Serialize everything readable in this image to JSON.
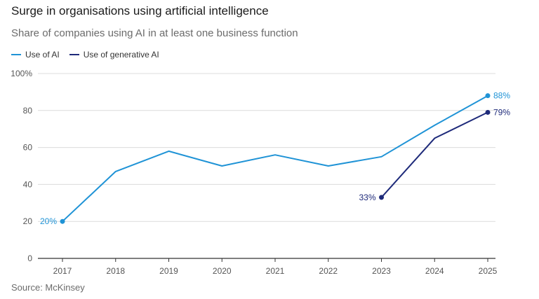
{
  "title": "Surge in organisations using artificial intelligence",
  "subtitle": "Share of companies using AI in at least one business function",
  "source": "Source: McKinsey",
  "chart_data": {
    "type": "line",
    "title": "Surge in organisations using artificial intelligence",
    "subtitle": "Share of companies using AI in at least one business function",
    "x": [
      2017,
      2018,
      2019,
      2020,
      2021,
      2022,
      2023,
      2024,
      2025
    ],
    "ylim": [
      0,
      100
    ],
    "yticks": [
      0,
      20,
      40,
      60,
      80,
      100
    ],
    "ytick_labels": [
      "0",
      "20",
      "40",
      "60",
      "80",
      "100%"
    ],
    "grid": true,
    "legend_position": "top-left",
    "series": [
      {
        "name": "Use of AI",
        "color": "#1f93d6",
        "values": [
          20,
          47,
          58,
          50,
          56,
          50,
          55,
          72,
          88
        ],
        "labels": [
          {
            "index": 0,
            "text": "20%",
            "side": "left"
          },
          {
            "index": 8,
            "text": "88%",
            "side": "right"
          }
        ]
      },
      {
        "name": "Use of generative AI",
        "color": "#1e2a7a",
        "values": [
          null,
          null,
          null,
          null,
          null,
          null,
          33,
          65,
          79
        ],
        "labels": [
          {
            "index": 6,
            "text": "33%",
            "side": "left"
          },
          {
            "index": 8,
            "text": "79%",
            "side": "right"
          }
        ]
      }
    ]
  }
}
